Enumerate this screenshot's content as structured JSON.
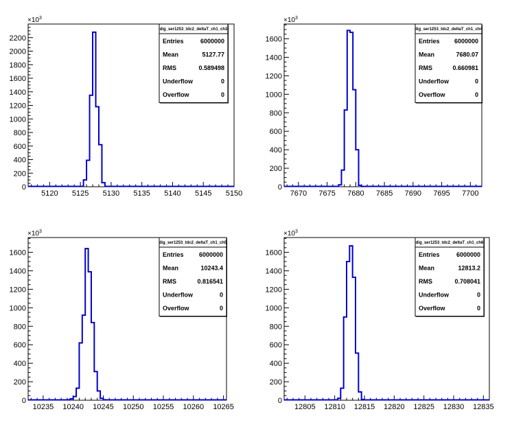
{
  "chart_data": [
    {
      "type": "histogram",
      "exponent_label": "×10",
      "exponent_power": "3",
      "x_ticks": [
        5120,
        5125,
        5130,
        5135,
        5140,
        5145,
        5150
      ],
      "y_ticks": [
        0,
        200,
        400,
        600,
        800,
        1000,
        1200,
        1400,
        1600,
        1800,
        2000,
        2200
      ],
      "xlim": [
        5116.5,
        5150
      ],
      "ylim": [
        0,
        2400
      ],
      "bin_width": 0.5,
      "bin_start": 5125,
      "counts": [
        5,
        100,
        390,
        1350,
        2280,
        1180,
        620,
        60,
        5
      ],
      "line_color": "#0000cc",
      "stats": {
        "title": "dig_ser1253_tdc2_deltaT_ch1_ch3",
        "rows": [
          {
            "label": "Entries",
            "value": "6000000"
          },
          {
            "label": "Mean",
            "value": "5127.77"
          },
          {
            "label": "RMS",
            "value": "0.589498"
          },
          {
            "label": "Underflow",
            "value": "0"
          },
          {
            "label": "Overflow",
            "value": "0"
          }
        ]
      }
    },
    {
      "type": "histogram",
      "exponent_label": "×10",
      "exponent_power": "3",
      "x_ticks": [
        7670,
        7675,
        7680,
        7685,
        7690,
        7695,
        7700
      ],
      "y_ticks": [
        0,
        200,
        400,
        600,
        800,
        1000,
        1200,
        1400,
        1600
      ],
      "xlim": [
        7667.5,
        7702
      ],
      "ylim": [
        0,
        1760
      ],
      "bin_width": 0.5,
      "bin_start": 7677,
      "counts": [
        20,
        180,
        830,
        1690,
        1670,
        1050,
        400,
        15,
        3
      ],
      "line_color": "#0000cc",
      "stats": {
        "title": "dig_ser1253_tdc2_deltaT_ch1_ch4",
        "rows": [
          {
            "label": "Entries",
            "value": "6000000"
          },
          {
            "label": "Mean",
            "value": "7680.07"
          },
          {
            "label": "RMS",
            "value": "0.660981"
          },
          {
            "label": "Underflow",
            "value": "0"
          },
          {
            "label": "Overflow",
            "value": "0"
          }
        ]
      }
    },
    {
      "type": "histogram",
      "exponent_label": "×10",
      "exponent_power": "3",
      "x_ticks": [
        10235,
        10240,
        10245,
        10250,
        10255,
        10260,
        10265
      ],
      "y_ticks": [
        0,
        200,
        400,
        600,
        800,
        1000,
        1200,
        1400,
        1600
      ],
      "xlim": [
        10232.5,
        10265.5
      ],
      "ylim": [
        0,
        1760
      ],
      "bin_width": 0.5,
      "bin_start": 10239,
      "counts": [
        5,
        15,
        40,
        130,
        620,
        920,
        1640,
        1390,
        840,
        310,
        100,
        20,
        5
      ],
      "line_color": "#0000cc",
      "stats": {
        "title": "dig_ser1253_tdc2_deltaT_ch1_ch5",
        "rows": [
          {
            "label": "Entries",
            "value": "6000000"
          },
          {
            "label": "Mean",
            "value": "10243.4"
          },
          {
            "label": "RMS",
            "value": "0.816541"
          },
          {
            "label": "Underflow",
            "value": "0"
          },
          {
            "label": "Overflow",
            "value": "0"
          }
        ]
      }
    },
    {
      "type": "histogram",
      "exponent_label": "×10",
      "exponent_power": "3",
      "x_ticks": [
        12805,
        12810,
        12815,
        12820,
        12825,
        12830,
        12835
      ],
      "y_ticks": [
        0,
        200,
        400,
        600,
        800,
        1000,
        1200,
        1400,
        1600
      ],
      "xlim": [
        12801.5,
        12836
      ],
      "ylim": [
        0,
        1760
      ],
      "bin_width": 0.5,
      "bin_start": 12810.5,
      "counts": [
        20,
        130,
        900,
        1500,
        1670,
        1330,
        510,
        90,
        8
      ],
      "line_color": "#0000cc",
      "stats": {
        "title": "dig_ser1253_tdc2_deltaT_ch1_ch6",
        "rows": [
          {
            "label": "Entries",
            "value": "6000000"
          },
          {
            "label": "Mean",
            "value": "12813.2"
          },
          {
            "label": "RMS",
            "value": "0.708041"
          },
          {
            "label": "Underflow",
            "value": "0"
          },
          {
            "label": "Overflow",
            "value": "0"
          }
        ]
      }
    }
  ]
}
